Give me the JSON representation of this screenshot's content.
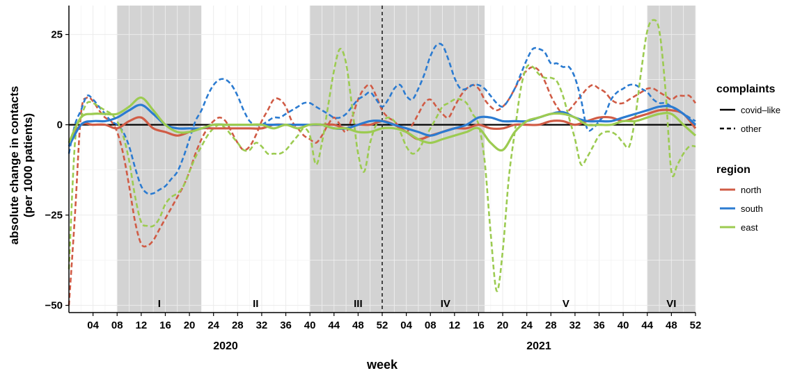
{
  "chart_data": {
    "type": "line",
    "xlabel": "week",
    "ylabel_lines": [
      "absolute change in contacts",
      "(per 1000 patients)"
    ],
    "ylim": [
      -52,
      33
    ],
    "y_ticks": [
      25,
      0,
      -25,
      -50
    ],
    "y_tick_labels": [
      "25",
      "0",
      "−25",
      "−50"
    ],
    "x_range_weeks": [
      0,
      104
    ],
    "x_ticks": [
      {
        "w": 4,
        "label": "04"
      },
      {
        "w": 8,
        "label": "08"
      },
      {
        "w": 12,
        "label": "12"
      },
      {
        "w": 16,
        "label": "16"
      },
      {
        "w": 20,
        "label": "20"
      },
      {
        "w": 24,
        "label": "24"
      },
      {
        "w": 28,
        "label": "28"
      },
      {
        "w": 32,
        "label": "32"
      },
      {
        "w": 36,
        "label": "36"
      },
      {
        "w": 40,
        "label": "40"
      },
      {
        "w": 44,
        "label": "44"
      },
      {
        "w": 48,
        "label": "48"
      },
      {
        "w": 52,
        "label": "52"
      },
      {
        "w": 56,
        "label": "04"
      },
      {
        "w": 60,
        "label": "08"
      },
      {
        "w": 64,
        "label": "12"
      },
      {
        "w": 68,
        "label": "16"
      },
      {
        "w": 72,
        "label": "20"
      },
      {
        "w": 76,
        "label": "24"
      },
      {
        "w": 80,
        "label": "28"
      },
      {
        "w": 84,
        "label": "32"
      },
      {
        "w": 88,
        "label": "36"
      },
      {
        "w": 92,
        "label": "40"
      },
      {
        "w": 96,
        "label": "44"
      },
      {
        "w": 100,
        "label": "48"
      },
      {
        "w": 104,
        "label": "52"
      }
    ],
    "years": [
      {
        "w": 26,
        "label": "2020"
      },
      {
        "w": 78,
        "label": "2021"
      }
    ],
    "reference_line_y": 0,
    "dashed_vline_week": 52,
    "periods": [
      {
        "label": "I",
        "start": 8,
        "end": 22,
        "shaded": true
      },
      {
        "label": "II",
        "start": 22,
        "end": 40,
        "shaded": false
      },
      {
        "label": "III",
        "start": 40,
        "end": 56,
        "shaded": true
      },
      {
        "label": "IV",
        "start": 56,
        "end": 69,
        "shaded": true
      },
      {
        "label": "V",
        "start": 69,
        "end": 96,
        "shaded": false
      },
      {
        "label": "VI",
        "start": 96,
        "end": 104,
        "shaded": true
      }
    ],
    "legend": {
      "placement": "right",
      "complaints_title": "complaints",
      "complaints": [
        {
          "label": "covid–like",
          "dash": "solid"
        },
        {
          "label": "other",
          "dash": "dashed"
        }
      ],
      "region_title": "region",
      "regions": [
        {
          "label": "north",
          "color": "#D05B45"
        },
        {
          "label": "south",
          "color": "#2B7BD1"
        },
        {
          "label": "east",
          "color": "#9CCB51"
        }
      ]
    },
    "series": [
      {
        "region": "north",
        "complaints": "other",
        "color": "#D05B45",
        "dash": "dashed",
        "x": [
          0,
          1,
          2,
          3,
          4,
          5,
          6,
          7,
          8,
          9,
          10,
          11,
          12,
          13,
          14,
          15,
          16,
          17,
          18,
          19,
          20,
          21,
          22,
          23,
          24,
          25,
          26,
          27,
          28,
          29,
          30,
          31,
          32,
          33,
          34,
          35,
          36,
          37,
          38,
          39,
          40,
          41,
          42,
          43,
          44,
          45,
          46,
          47,
          48,
          49,
          50,
          51,
          52,
          53,
          54,
          55,
          56,
          57,
          58,
          59,
          60,
          61,
          62,
          63,
          64,
          65,
          66,
          67,
          68,
          69,
          70,
          71,
          72,
          73,
          74,
          75,
          76,
          77,
          78,
          79,
          80,
          81,
          82,
          83,
          84,
          85,
          86,
          87,
          88,
          89,
          90,
          91,
          92,
          93,
          94,
          95,
          96,
          97,
          98,
          99,
          100,
          101,
          102,
          103,
          104
        ],
        "y": [
          -50,
          -25,
          3,
          7.5,
          6.5,
          4,
          2,
          1,
          -2,
          -8,
          -17,
          -27,
          -33,
          -33.5,
          -32,
          -29,
          -26,
          -23,
          -20,
          -17,
          -13,
          -8,
          -4,
          -1,
          1,
          2,
          1,
          -2,
          -5,
          -7,
          -6,
          -3,
          1,
          4,
          7,
          7,
          5,
          1,
          -1,
          -3,
          -4,
          -5,
          -3,
          0,
          2,
          0,
          -2,
          2,
          7,
          10,
          11,
          8,
          4,
          2,
          1,
          -1,
          -2,
          0,
          3,
          6,
          7,
          5,
          3,
          2,
          5,
          8,
          10,
          11,
          10,
          7,
          5,
          4,
          5,
          7,
          10,
          13,
          15,
          16,
          15,
          12,
          8,
          5,
          3,
          4,
          6,
          8,
          10,
          11,
          10,
          9,
          7,
          6,
          6,
          7,
          8,
          9,
          10,
          10,
          9,
          8,
          7,
          8,
          8,
          8,
          6
        ]
      },
      {
        "region": "south",
        "complaints": "other",
        "color": "#2B7BD1",
        "dash": "dashed",
        "x": [
          0,
          1,
          2,
          3,
          4,
          5,
          6,
          7,
          8,
          9,
          10,
          11,
          12,
          13,
          14,
          15,
          16,
          17,
          18,
          19,
          20,
          21,
          22,
          23,
          24,
          25,
          26,
          27,
          28,
          29,
          30,
          31,
          32,
          33,
          34,
          35,
          36,
          37,
          38,
          39,
          40,
          41,
          42,
          43,
          44,
          45,
          46,
          47,
          48,
          49,
          50,
          51,
          52,
          53,
          54,
          55,
          56,
          57,
          58,
          59,
          60,
          61,
          62,
          63,
          64,
          65,
          66,
          67,
          68,
          69,
          70,
          71,
          72,
          73,
          74,
          75,
          76,
          77,
          78,
          79,
          80,
          81,
          82,
          83,
          84,
          85,
          86,
          87,
          88,
          89,
          90,
          91,
          92,
          93,
          94,
          95,
          96,
          97,
          98,
          99,
          100,
          101,
          102,
          103,
          104
        ],
        "y": [
          -8,
          0,
          4,
          8,
          7,
          5,
          3,
          1,
          0,
          -2,
          -6,
          -12,
          -17,
          -19,
          -19,
          -18,
          -17,
          -15,
          -13,
          -9,
          -4,
          1,
          4,
          8,
          11,
          12.5,
          12.5,
          11,
          8,
          4,
          1,
          0,
          0,
          1,
          2,
          2,
          3,
          4,
          5,
          6,
          6,
          5,
          4,
          3,
          2,
          2,
          3,
          5,
          7,
          8,
          9,
          7,
          5,
          7,
          10,
          11,
          8,
          7,
          10,
          14,
          19,
          22,
          22,
          18,
          13,
          10,
          10,
          11,
          11,
          10,
          8,
          6,
          5,
          7,
          10,
          14,
          18,
          21,
          21,
          20,
          17,
          17,
          16,
          16,
          13,
          7,
          -1,
          -1,
          1,
          3,
          7,
          9,
          10,
          11,
          11,
          10,
          9,
          7,
          6,
          6,
          5,
          4,
          3,
          2,
          1
        ]
      },
      {
        "region": "east",
        "complaints": "other",
        "color": "#9CCB51",
        "dash": "dashed",
        "x": [
          0,
          1,
          2,
          3,
          4,
          5,
          6,
          7,
          8,
          9,
          10,
          11,
          12,
          13,
          14,
          15,
          16,
          17,
          18,
          19,
          20,
          21,
          22,
          23,
          24,
          25,
          26,
          27,
          28,
          29,
          30,
          31,
          32,
          33,
          34,
          35,
          36,
          37,
          38,
          39,
          40,
          41,
          42,
          43,
          44,
          45,
          46,
          47,
          48,
          49,
          50,
          51,
          52,
          53,
          54,
          55,
          56,
          57,
          58,
          59,
          60,
          61,
          62,
          63,
          64,
          65,
          66,
          67,
          68,
          69,
          70,
          71,
          72,
          73,
          74,
          75,
          76,
          77,
          78,
          79,
          80,
          81,
          82,
          83,
          84,
          85,
          86,
          87,
          88,
          89,
          90,
          91,
          92,
          93,
          94,
          95,
          96,
          97,
          98,
          99,
          100,
          101,
          102,
          103,
          104
        ],
        "y": [
          -40,
          -5,
          2,
          6,
          6,
          5,
          4,
          3,
          1,
          -3,
          -10,
          -20,
          -27,
          -28,
          -28,
          -26,
          -22,
          -20,
          -19,
          -17,
          -13,
          -9,
          -6,
          -3,
          -1,
          0,
          -1,
          -3,
          -5,
          -7,
          -7,
          -5,
          -6,
          -8,
          -8,
          -8,
          -7,
          -5,
          -3,
          -1,
          -3,
          -11,
          -5,
          5,
          15,
          21,
          17,
          5,
          -8,
          -13,
          -5,
          0,
          1,
          2,
          1,
          -2,
          -6,
          -8,
          -7,
          -4,
          -1,
          2,
          5,
          6,
          7,
          7,
          6,
          3,
          0,
          -10,
          -30,
          -46,
          -35,
          -15,
          -2,
          10,
          16,
          16,
          14,
          13,
          13,
          12,
          8,
          2,
          -4,
          -11,
          -9,
          -6,
          -3,
          -2,
          -2,
          -3,
          -5,
          -6,
          2,
          15,
          26,
          29,
          26,
          10,
          -13,
          -11,
          -8,
          -6,
          -6
        ]
      },
      {
        "region": "north",
        "complaints": "covid-like",
        "color": "#D05B45",
        "dash": "solid",
        "x": [
          0,
          2,
          4,
          6,
          8,
          10,
          12,
          14,
          16,
          18,
          20,
          22,
          24,
          26,
          28,
          30,
          32,
          34,
          36,
          38,
          40,
          42,
          44,
          46,
          48,
          50,
          52,
          54,
          56,
          58,
          60,
          62,
          64,
          66,
          68,
          70,
          72,
          74,
          76,
          78,
          80,
          82,
          84,
          86,
          88,
          90,
          92,
          94,
          96,
          98,
          100,
          102,
          104
        ],
        "y": [
          -5,
          0,
          0,
          0,
          -1,
          1,
          2,
          -1,
          -2,
          -3,
          -2,
          -1,
          -1,
          -1,
          -1,
          -1,
          -1,
          0,
          0,
          0,
          0,
          0,
          0,
          -1,
          0,
          0,
          1,
          0,
          -2,
          -4,
          -3,
          -2,
          -1,
          -1,
          0,
          -1,
          -1,
          0,
          0,
          0,
          1,
          1,
          0,
          1,
          2,
          2,
          1,
          2,
          3,
          4,
          4,
          3,
          -1
        ]
      },
      {
        "region": "south",
        "complaints": "covid-like",
        "color": "#2B7BD1",
        "dash": "solid",
        "x": [
          0,
          2,
          4,
          6,
          8,
          10,
          12,
          14,
          16,
          18,
          20,
          22,
          24,
          26,
          28,
          30,
          32,
          34,
          36,
          38,
          40,
          42,
          44,
          46,
          48,
          50,
          52,
          54,
          56,
          58,
          60,
          62,
          64,
          66,
          68,
          70,
          72,
          74,
          76,
          78,
          80,
          82,
          84,
          86,
          88,
          90,
          92,
          94,
          96,
          98,
          100,
          102,
          104
        ],
        "y": [
          -6,
          0,
          1,
          1,
          2,
          4,
          5.5,
          3,
          0,
          -1,
          -1,
          -1,
          0,
          0,
          0,
          0,
          0,
          0,
          0,
          0,
          0,
          0,
          -1,
          -1,
          0,
          1,
          1,
          0,
          -1,
          -2,
          -3,
          -2,
          -1,
          0,
          2,
          2,
          1,
          1,
          1,
          2,
          3,
          3.5,
          2,
          1,
          1,
          1,
          2,
          3,
          4,
          5,
          5,
          3,
          0
        ]
      },
      {
        "region": "east",
        "complaints": "covid-like",
        "color": "#9CCB51",
        "dash": "solid",
        "x": [
          0,
          2,
          4,
          6,
          8,
          10,
          12,
          14,
          16,
          18,
          20,
          22,
          24,
          26,
          28,
          30,
          32,
          34,
          36,
          38,
          40,
          42,
          44,
          46,
          48,
          50,
          52,
          54,
          56,
          58,
          60,
          62,
          64,
          66,
          68,
          70,
          72,
          74,
          76,
          78,
          80,
          82,
          84,
          86,
          88,
          90,
          92,
          94,
          96,
          98,
          100,
          102,
          104
        ],
        "y": [
          -5,
          2,
          3,
          3,
          3,
          5,
          7.5,
          4,
          0,
          -2,
          -2,
          -1,
          0,
          0,
          0,
          0,
          0,
          -1,
          0,
          -1,
          0,
          0,
          -1,
          -1,
          -2,
          -2,
          -1,
          -1,
          -2,
          -4,
          -5,
          -4,
          -3,
          -2,
          -1,
          -5,
          -7,
          -2,
          1,
          2,
          3,
          3,
          2,
          0,
          0,
          0,
          1,
          1,
          2,
          3,
          3,
          0,
          -3
        ]
      }
    ]
  }
}
